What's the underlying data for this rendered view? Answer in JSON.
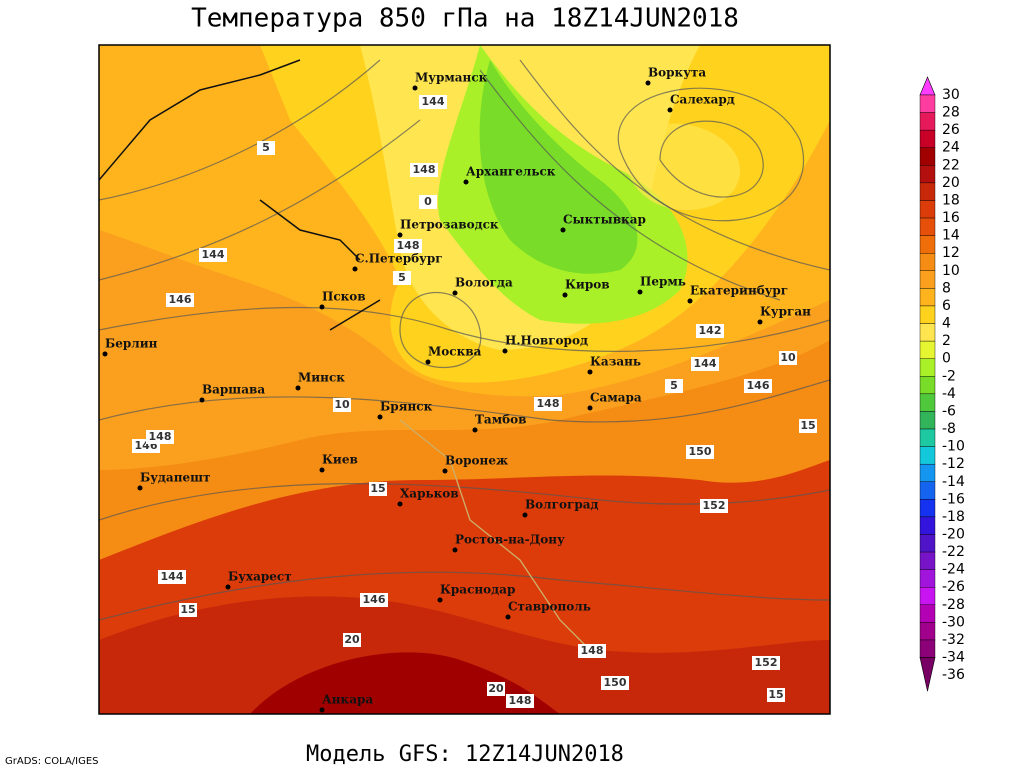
{
  "header": {
    "title": "Температура 850 гПа на 18Z14JUN2018"
  },
  "footer": {
    "model": "Модель GFS: 12Z14JUN2018",
    "credit": "GrADS: COLA/IGES"
  },
  "cities": [
    "Мурманск",
    "Воркута",
    "Салехард",
    "Архангельск",
    "Петрозаводск",
    "Сыктывкар",
    "С.Петербург",
    "Вологда",
    "Киров",
    "Пермь",
    "Екатеринбург",
    "Курган",
    "Псков",
    "Берлин",
    "Н.Новгород",
    "Москва",
    "Казань",
    "Варшава",
    "Минск",
    "Самара",
    "Брянск",
    "Тамбов",
    "Киев",
    "Воронеж",
    "Харьков",
    "Будапешт",
    "Волгоград",
    "Ростов-на-Дону",
    "Бухарест",
    "Краснодар",
    "Ставрополь",
    "Анкара"
  ],
  "contour_labels": [
    144,
    148,
    146,
    144,
    148,
    146,
    148,
    148,
    142,
    144,
    146,
    150,
    152,
    152,
    148,
    150,
    148,
    144,
    146
  ],
  "isotherm_labels": [
    5,
    0,
    5,
    5,
    10,
    10,
    15,
    15,
    15,
    20,
    20,
    15
  ],
  "colorbar": [
    {
      "value": 30,
      "color": "#ff3cff"
    },
    {
      "value": 28,
      "color": "#ff3ca0"
    },
    {
      "value": 26,
      "color": "#e6195a"
    },
    {
      "value": 24,
      "color": "#c80028"
    },
    {
      "value": 22,
      "color": "#a00000"
    },
    {
      "value": 20,
      "color": "#b40f0f"
    },
    {
      "value": 18,
      "color": "#c8280a"
    },
    {
      "value": 16,
      "color": "#dc3c0a"
    },
    {
      "value": 14,
      "color": "#e6500a"
    },
    {
      "value": 12,
      "color": "#f06e0a"
    },
    {
      "value": 10,
      "color": "#f58c14"
    },
    {
      "value": 8,
      "color": "#faa01e"
    },
    {
      "value": 6,
      "color": "#ffb41e"
    },
    {
      "value": 4,
      "color": "#ffd21e"
    },
    {
      "value": 2,
      "color": "#ffe650"
    },
    {
      "value": 0,
      "color": "#e6f532"
    },
    {
      "value": -2,
      "color": "#aaf028"
    },
    {
      "value": -4,
      "color": "#78dc28"
    },
    {
      "value": -6,
      "color": "#50c83c"
    },
    {
      "value": -8,
      "color": "#32b45a"
    },
    {
      "value": -10,
      "color": "#1ec8a0"
    },
    {
      "value": -12,
      "color": "#14c8dc"
    },
    {
      "value": -14,
      "color": "#1496f0"
    },
    {
      "value": -16,
      "color": "#1464f0"
    },
    {
      "value": -18,
      "color": "#1432f0"
    },
    {
      "value": -20,
      "color": "#3214dc"
    },
    {
      "value": -22,
      "color": "#5014c8"
    },
    {
      "value": -24,
      "color": "#7814c8"
    },
    {
      "value": -26,
      "color": "#a014dc"
    },
    {
      "value": -28,
      "color": "#c814f0"
    },
    {
      "value": -30,
      "color": "#b400b4"
    },
    {
      "value": -32,
      "color": "#a0008c"
    },
    {
      "value": -34,
      "color": "#8c0078"
    },
    {
      "value": -36,
      "color": "#780064"
    }
  ]
}
